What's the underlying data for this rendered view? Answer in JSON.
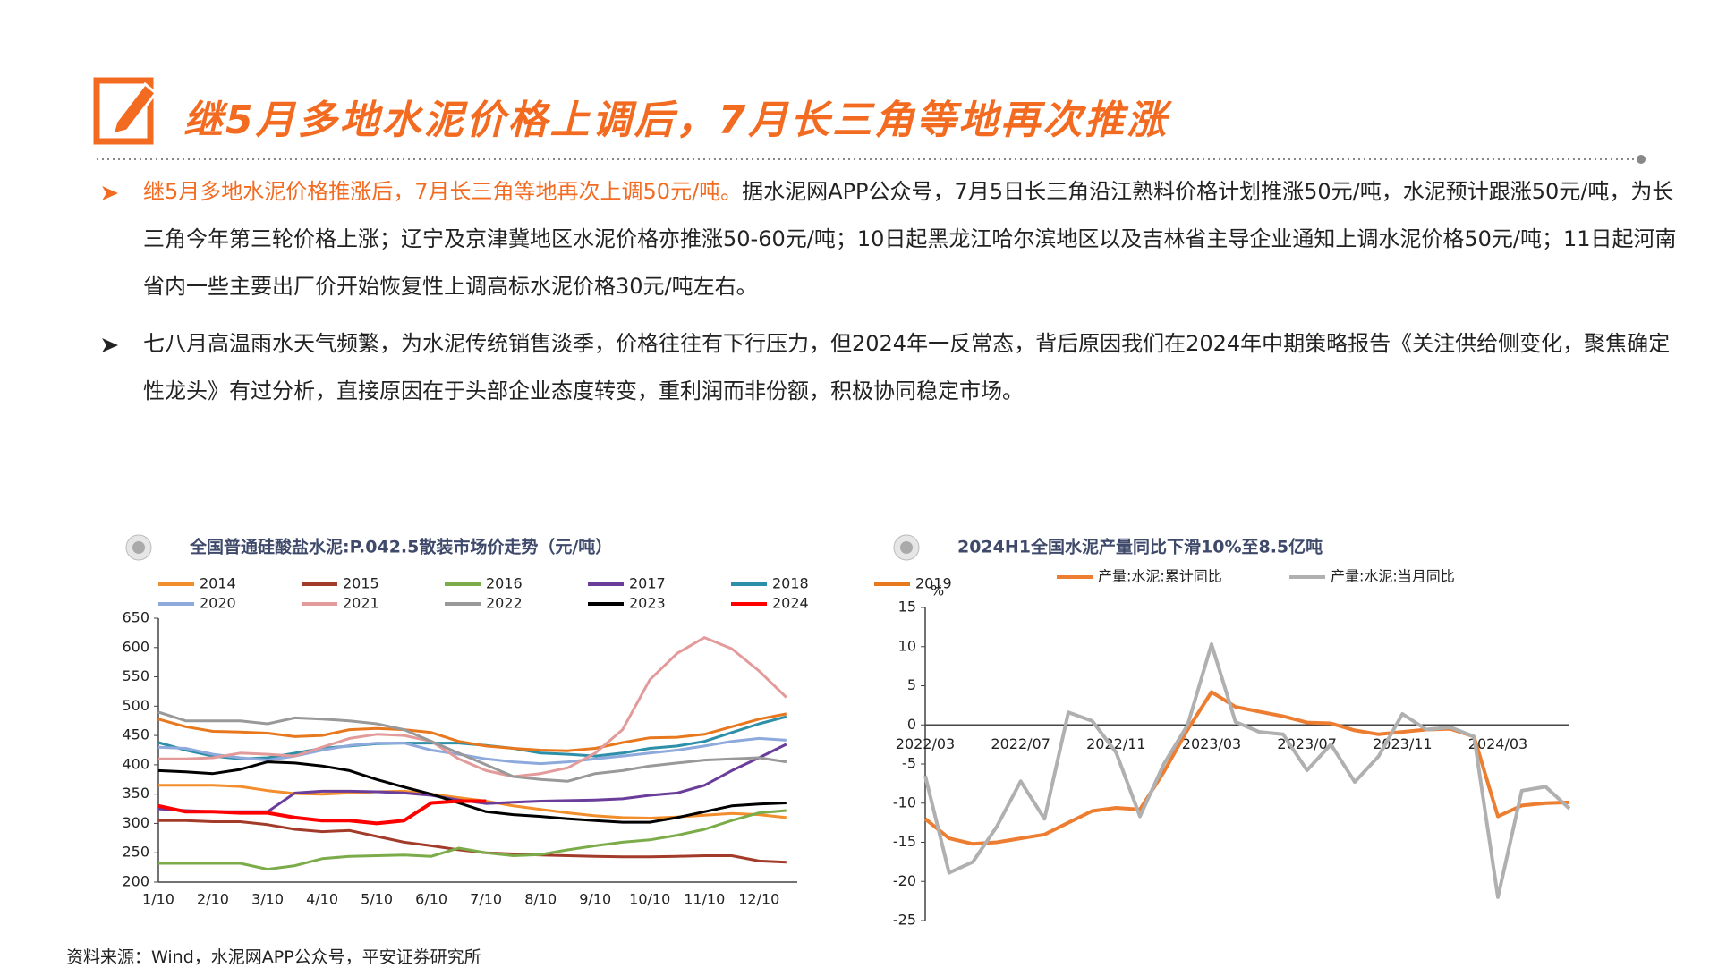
{
  "header": {
    "title": "继5月多地水泥价格上调后，7月长三角等地再次推涨"
  },
  "bullets": [
    {
      "highlight": "继5月多地水泥价格推涨后，7月长三角等地再次上调50元/吨。",
      "text": "据水泥网APP公众号，7月5日长三角沿江熟料价格计划推涨50元/吨，水泥预计跟涨50元/吨，为长三角今年第三轮价格上涨；辽宁及京津冀地区水泥价格亦推涨50-60元/吨；10日起黑龙江哈尔滨地区以及吉林省主导企业通知上调水泥价格50元/吨；11日起河南省内一些主要出厂价开始恢复性上调高标水泥价格30元/吨左右。"
    },
    {
      "text": "七八月高温雨水天气频繁，为水泥传统销售淡季，价格往往有下行压力，但2024年一反常态，背后原因我们在2024年中期策略报告《关注供给侧变化，聚焦确定性龙头》有过分析，直接原因在于头部企业态度转变，重利润而非份额，积极协同稳定市场。"
    }
  ],
  "chart_data": [
    {
      "type": "line",
      "title": "全国普通硅酸盐水泥:P.042.5散装市场价走势（元/吨）",
      "categories": [
        "1/10",
        null,
        "2/10",
        null,
        "3/10",
        null,
        "4/10",
        null,
        "5/10",
        null,
        "6/10",
        null,
        "7/10",
        null,
        "8/10",
        null,
        "9/10",
        null,
        "10/10",
        null,
        "11/10",
        null,
        "12/10",
        null
      ],
      "ylim": [
        200,
        650
      ],
      "yticks": [
        200,
        250,
        300,
        350,
        400,
        450,
        500,
        550,
        600,
        650
      ],
      "series": [
        {
          "name": "2014",
          "color": "#f28e2b",
          "values": [
            365,
            365,
            365,
            363,
            356,
            351,
            350,
            352,
            354,
            355,
            350,
            344,
            338,
            330,
            324,
            318,
            313,
            310,
            309,
            311,
            314,
            317,
            315,
            310
          ]
        },
        {
          "name": "2015",
          "color": "#a33b2a",
          "values": [
            305,
            305,
            303,
            303,
            298,
            290,
            286,
            288,
            278,
            268,
            262,
            255,
            250,
            248,
            246,
            245,
            244,
            243,
            243,
            244,
            245,
            245,
            236,
            234
          ]
        },
        {
          "name": "2016",
          "color": "#7cac4a",
          "values": [
            232,
            232,
            232,
            232,
            222,
            228,
            240,
            244,
            245,
            246,
            244,
            258,
            250,
            245,
            247,
            255,
            262,
            268,
            272,
            280,
            290,
            305,
            318,
            322
          ]
        },
        {
          "name": "2017",
          "color": "#6a3d9a",
          "values": [
            325,
            322,
            320,
            320,
            320,
            352,
            355,
            355,
            354,
            352,
            348,
            340,
            334,
            336,
            338,
            339,
            340,
            342,
            348,
            352,
            365,
            390,
            412,
            435
          ]
        },
        {
          "name": "2018",
          "color": "#2e8fa8",
          "values": [
            438,
            425,
            415,
            410,
            412,
            420,
            428,
            432,
            436,
            437,
            437,
            437,
            433,
            428,
            420,
            418,
            415,
            420,
            428,
            432,
            440,
            455,
            470,
            482
          ]
        },
        {
          "name": "2019",
          "color": "#e8781e",
          "values": [
            478,
            465,
            457,
            456,
            454,
            448,
            450,
            460,
            462,
            460,
            455,
            440,
            432,
            428,
            425,
            424,
            428,
            438,
            446,
            447,
            452,
            465,
            478,
            487
          ]
        },
        {
          "name": "2020",
          "color": "#8ea9db",
          "values": [
            430,
            428,
            418,
            412,
            408,
            415,
            425,
            433,
            437,
            437,
            425,
            418,
            410,
            405,
            402,
            405,
            410,
            415,
            420,
            425,
            432,
            440,
            445,
            442
          ]
        },
        {
          "name": "2021",
          "color": "#e39a9a",
          "values": [
            410,
            410,
            412,
            420,
            418,
            415,
            430,
            445,
            452,
            450,
            440,
            410,
            390,
            380,
            385,
            395,
            420,
            460,
            545,
            590,
            617,
            598,
            560,
            515
          ]
        },
        {
          "name": "2022",
          "color": "#999999",
          "values": [
            490,
            475,
            475,
            475,
            470,
            480,
            478,
            475,
            470,
            460,
            440,
            420,
            400,
            380,
            375,
            372,
            385,
            390,
            398,
            403,
            408,
            410,
            412,
            405
          ]
        },
        {
          "name": "2023",
          "color": "#000000",
          "values": [
            390,
            388,
            385,
            392,
            405,
            403,
            398,
            390,
            375,
            362,
            350,
            335,
            320,
            315,
            312,
            308,
            305,
            302,
            302,
            310,
            320,
            330,
            333,
            335
          ]
        },
        {
          "name": "2024",
          "color": "#ff0000",
          "values": [
            330,
            320,
            320,
            318,
            318,
            310,
            305,
            305,
            300,
            305,
            335,
            338,
            338,
            null,
            null,
            null,
            null,
            null,
            null,
            null,
            null,
            null,
            null,
            null
          ]
        }
      ]
    },
    {
      "type": "line",
      "title": "2024H1全国水泥产量同比下滑10%至8.5亿吨",
      "y_label": "%",
      "categories": [
        "2022/03",
        null,
        null,
        null,
        "2022/07",
        null,
        null,
        null,
        "2022/11",
        null,
        null,
        null,
        "2023/03",
        null,
        null,
        null,
        "2023/07",
        null,
        null,
        null,
        "2023/11",
        null,
        null,
        null,
        "2024/03",
        null,
        null,
        null
      ],
      "ylim": [
        -25,
        15
      ],
      "yticks": [
        -25,
        -20,
        -15,
        -10,
        -5,
        0,
        5,
        10,
        15
      ],
      "series": [
        {
          "name": "产量:水泥:累计同比",
          "color": "#ed7d31",
          "values": [
            -12,
            -14.5,
            -15.2,
            -15,
            -14.5,
            -14,
            -12.5,
            -11,
            -10.6,
            -10.8,
            -6,
            -0.6,
            4.2,
            2.3,
            1.7,
            1.1,
            0.3,
            0.2,
            -0.7,
            -1.2,
            -0.9,
            -0.6,
            -0.5,
            -1.5,
            -11.7,
            -10.3,
            -10,
            -9.9
          ]
        },
        {
          "name": "产量:水泥:当月同比",
          "color": "#b0b0b0",
          "values": [
            -6.5,
            -18.9,
            -17.5,
            -13,
            -7.2,
            -12,
            1.6,
            0.5,
            -3.5,
            -11.7,
            -5,
            0,
            10.3,
            0.4,
            -0.9,
            -1.2,
            -5.8,
            -2.5,
            -7.3,
            -4,
            1.4,
            -0.6,
            -0.3,
            -1.5,
            -22,
            -8.4,
            -7.9,
            -10.7
          ]
        }
      ]
    }
  ],
  "source": "资料来源：Wind，水泥网APP公众号，平安证券研究所"
}
